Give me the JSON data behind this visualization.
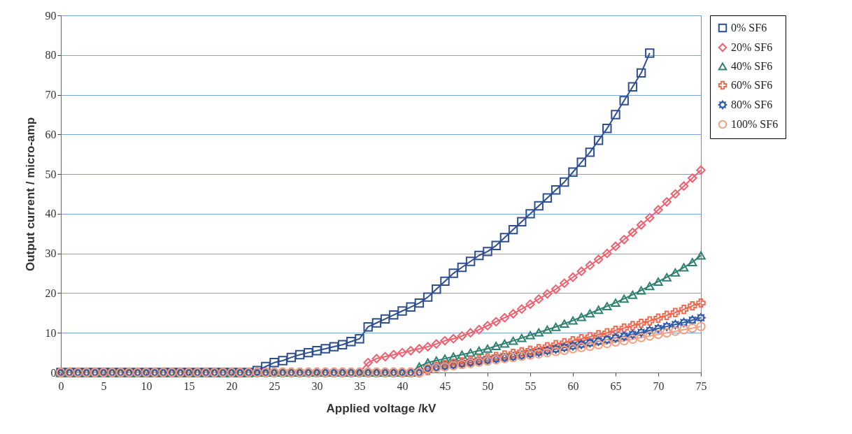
{
  "chart_data": {
    "type": "line",
    "xlabel": "Applied voltage /kV",
    "ylabel": "Output current / micro-amp",
    "x": [
      0,
      1,
      2,
      3,
      4,
      5,
      6,
      7,
      8,
      9,
      10,
      11,
      12,
      13,
      14,
      15,
      16,
      17,
      18,
      19,
      20,
      21,
      22,
      23,
      24,
      25,
      26,
      27,
      28,
      29,
      30,
      31,
      32,
      33,
      34,
      35,
      36,
      37,
      38,
      39,
      40,
      41,
      42,
      43,
      44,
      45,
      46,
      47,
      48,
      49,
      50,
      51,
      52,
      53,
      54,
      55,
      56,
      57,
      58,
      59,
      60,
      61,
      62,
      63,
      64,
      65,
      66,
      67,
      68,
      69,
      70,
      71,
      72,
      73,
      74,
      75
    ],
    "xlim": [
      0,
      75
    ],
    "xticks": [
      0,
      5,
      10,
      15,
      20,
      25,
      30,
      35,
      40,
      45,
      50,
      55,
      60,
      65,
      70,
      75
    ],
    "ylim": [
      0,
      90
    ],
    "yticks": [
      0,
      10,
      20,
      30,
      40,
      50,
      60,
      70,
      80,
      90
    ],
    "grid": "y",
    "legend": "right",
    "series": [
      {
        "name": "0% SF6",
        "color": "#2e4f8f",
        "marker": "square",
        "values": [
          0,
          0,
          0,
          0,
          0,
          0,
          0,
          0,
          0,
          0,
          0,
          0,
          0,
          0,
          0,
          0,
          0,
          0,
          0,
          0,
          0,
          0,
          0,
          0.5,
          1.5,
          2.5,
          3,
          3.8,
          4.5,
          5,
          5.5,
          6,
          6.5,
          7,
          7.8,
          8.5,
          11.5,
          12.5,
          13.5,
          14.5,
          15.5,
          16.5,
          17.5,
          19,
          21,
          23,
          25,
          26.5,
          28,
          29.5,
          30.5,
          32,
          34,
          36,
          38,
          40,
          42,
          44,
          46,
          48,
          50.5,
          53,
          55.5,
          58.5,
          61.5,
          65,
          68.5,
          72,
          75.5,
          80.5,
          null,
          null,
          null,
          null,
          null,
          null
        ]
      },
      {
        "name": "20% SF6",
        "color": "#f0606e",
        "marker": "diamond",
        "values": [
          0,
          0,
          0,
          0,
          0,
          0,
          0,
          0,
          0,
          0,
          0,
          0,
          0,
          0,
          0,
          0,
          0,
          0,
          0,
          0,
          0,
          0,
          0,
          0,
          0,
          0,
          0,
          0,
          0,
          0,
          0,
          0,
          0,
          0,
          0,
          0,
          2.5,
          3.5,
          4,
          4.5,
          5,
          5.5,
          6,
          6.5,
          7.2,
          8,
          8.5,
          9.2,
          10,
          10.8,
          11.8,
          12.8,
          13.8,
          14.8,
          16,
          17.2,
          18.5,
          19.8,
          21,
          22.5,
          24,
          25.5,
          27,
          28.5,
          30,
          31.8,
          33.5,
          35.3,
          37.2,
          39,
          41,
          43,
          45,
          47,
          49,
          51
        ]
      },
      {
        "name": "40% SF6",
        "color": "#2e8070",
        "marker": "triangle",
        "values": [
          0,
          0,
          0,
          0,
          0,
          0,
          0,
          0,
          0,
          0,
          0,
          0,
          0,
          0,
          0,
          0,
          0,
          0,
          0,
          0,
          0,
          0,
          0,
          0,
          0,
          0,
          0,
          0,
          0,
          0,
          0,
          0,
          0,
          0,
          0,
          0,
          0,
          0,
          0,
          0,
          0,
          0,
          1.5,
          2.5,
          3,
          3.5,
          4,
          4.5,
          5,
          5.5,
          6,
          6.7,
          7.3,
          8,
          8.7,
          9.4,
          10.1,
          10.8,
          11.5,
          12.3,
          13.1,
          14,
          14.9,
          15.8,
          16.7,
          17.6,
          18.6,
          19.6,
          20.7,
          21.8,
          22.9,
          24,
          25.2,
          26.5,
          27.8,
          29.5
        ]
      },
      {
        "name": "60% SF6",
        "color": "#f06a50",
        "marker": "cross",
        "values": [
          0,
          0,
          0,
          0,
          0,
          0,
          0,
          0,
          0,
          0,
          0,
          0,
          0,
          0,
          0,
          0,
          0,
          0,
          0,
          0,
          0,
          0,
          0,
          0,
          0,
          0,
          0,
          0,
          0,
          0,
          0,
          0,
          0,
          0,
          0,
          0,
          0,
          0,
          0,
          0,
          0,
          0,
          0,
          0.5,
          1.5,
          2,
          2.3,
          2.6,
          3,
          3.3,
          3.7,
          4,
          4.4,
          4.8,
          5.2,
          5.6,
          6,
          6.5,
          7,
          7.5,
          8,
          8.5,
          9,
          9.5,
          10,
          10.6,
          11.2,
          11.8,
          12.4,
          13,
          13.7,
          14.4,
          15.1,
          15.9,
          16.8,
          17.5
        ]
      },
      {
        "name": "80% SF6",
        "color": "#2e5aa8",
        "marker": "star",
        "values": [
          0,
          0,
          0,
          0,
          0,
          0,
          0,
          0,
          0,
          0,
          0,
          0,
          0,
          0,
          0,
          0,
          0,
          0,
          0,
          0,
          0,
          0,
          0,
          0,
          0,
          0,
          0,
          0,
          0,
          0,
          0,
          0,
          0,
          0,
          0,
          0,
          0,
          0,
          0,
          0,
          0,
          0,
          0,
          1,
          1.3,
          1.6,
          1.9,
          2.2,
          2.5,
          2.8,
          3.1,
          3.4,
          3.7,
          4,
          4.3,
          4.7,
          5.1,
          5.5,
          5.9,
          6.3,
          6.7,
          7.1,
          7.5,
          7.9,
          8.3,
          8.7,
          9.1,
          9.6,
          10.1,
          10.6,
          11.1,
          11.6,
          12.1,
          12.6,
          13.2,
          13.8
        ]
      },
      {
        "name": "100% SF6",
        "color": "#f5a080",
        "marker": "circle",
        "values": [
          0,
          0,
          0,
          0,
          0,
          0,
          0,
          0,
          0,
          0,
          0,
          0,
          0,
          0,
          0,
          0,
          0,
          0,
          0,
          0,
          0,
          0,
          0,
          0,
          0,
          0,
          0,
          0,
          0,
          0,
          0,
          0,
          0,
          0,
          0,
          0,
          0,
          0,
          0,
          0,
          0,
          0,
          0,
          1,
          1.2,
          1.4,
          1.7,
          2,
          2.3,
          2.6,
          2.9,
          3.2,
          3.5,
          3.8,
          4.1,
          4.4,
          4.7,
          5,
          5.3,
          5.6,
          6,
          6.3,
          6.6,
          7,
          7.3,
          7.7,
          8,
          8.4,
          8.8,
          9.2,
          9.6,
          10,
          10.4,
          10.8,
          11.2,
          11.6
        ]
      }
    ]
  }
}
